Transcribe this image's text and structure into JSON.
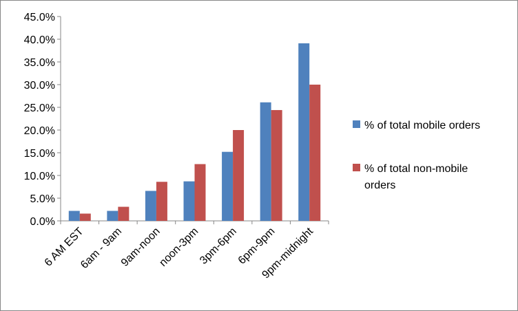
{
  "chart_data": {
    "type": "bar",
    "title": "",
    "xlabel": "",
    "ylabel": "",
    "categories": [
      "6 AM EST",
      "6am - 9am",
      "9am-noon",
      "noon-3pm",
      "3pm-6pm",
      "6pm-9pm",
      "9pm-midnight"
    ],
    "series": [
      {
        "name": "% of total mobile orders",
        "color": "#4F81BD",
        "values": [
          2.2,
          2.2,
          6.6,
          8.7,
          15.2,
          26.1,
          39.1
        ]
      },
      {
        "name": "% of total non-mobile orders",
        "color": "#C0504D",
        "values": [
          1.6,
          3.1,
          8.6,
          12.5,
          20.0,
          24.4,
          30.0
        ]
      }
    ],
    "ylim": [
      0,
      45
    ],
    "yticks": [
      0,
      5,
      10,
      15,
      20,
      25,
      30,
      35,
      40,
      45
    ],
    "ytick_labels": [
      "0.0%",
      "5.0%",
      "10.0%",
      "15.0%",
      "20.0%",
      "25.0%",
      "30.0%",
      "35.0%",
      "40.0%",
      "45.0%"
    ],
    "grid": false,
    "legend_position": "right",
    "legend_entries": [
      {
        "label_lines": [
          "% of total mobile orders"
        ]
      },
      {
        "label_lines": [
          "% of total non-mobile",
          "orders"
        ]
      }
    ]
  }
}
